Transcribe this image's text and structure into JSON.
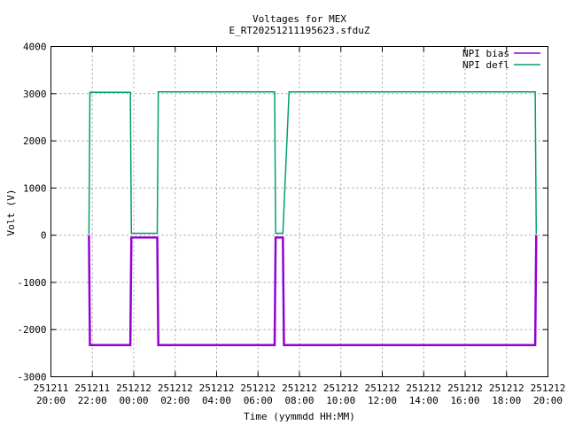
{
  "chart_data": {
    "type": "line",
    "title": "Voltages for MEX",
    "subtitle": "E_RT20251211195623.sfduZ",
    "xlabel": "Time (yymmdd HH:MM)",
    "ylabel": "Volt (V)",
    "xlim": [
      "2025-12-11 20:00",
      "2025-12-12 20:00"
    ],
    "ylim": [
      -3000,
      4000
    ],
    "y_ticks": [
      "4000",
      "3000",
      "2000",
      "1000",
      "0",
      "-1000",
      "-2000",
      "-3000"
    ],
    "x_ticks": [
      {
        "date": "251211",
        "time": "20:00"
      },
      {
        "date": "251211",
        "time": "22:00"
      },
      {
        "date": "251212",
        "time": "00:00"
      },
      {
        "date": "251212",
        "time": "02:00"
      },
      {
        "date": "251212",
        "time": "04:00"
      },
      {
        "date": "251212",
        "time": "06:00"
      },
      {
        "date": "251212",
        "time": "08:00"
      },
      {
        "date": "251212",
        "time": "10:00"
      },
      {
        "date": "251212",
        "time": "12:00"
      },
      {
        "date": "251212",
        "time": "14:00"
      },
      {
        "date": "251212",
        "time": "16:00"
      },
      {
        "date": "251212",
        "time": "18:00"
      },
      {
        "date": "251212",
        "time": "20:00"
      }
    ],
    "grid": true,
    "legend_position": "top-right",
    "series": [
      {
        "name": "NPI bias",
        "color": "#9400d3",
        "points": [
          [
            "2025-12-11 21:50",
            0
          ],
          [
            "2025-12-11 21:53",
            -2330
          ],
          [
            "2025-12-11 23:50",
            -2330
          ],
          [
            "2025-12-11 23:53",
            -50
          ],
          [
            "2025-12-12 01:08",
            -50
          ],
          [
            "2025-12-12 01:11",
            -2330
          ],
          [
            "2025-12-12 06:48",
            -2330
          ],
          [
            "2025-12-12 06:51",
            -50
          ],
          [
            "2025-12-12 07:12",
            -50
          ],
          [
            "2025-12-12 07:15",
            -2330
          ],
          [
            "2025-12-12 19:23",
            -2330
          ],
          [
            "2025-12-12 19:26",
            0
          ]
        ]
      },
      {
        "name": "NPI defl",
        "color": "#009e73",
        "points": [
          [
            "2025-12-11 21:50",
            20
          ],
          [
            "2025-12-11 21:53",
            3030
          ],
          [
            "2025-12-11 23:50",
            3030
          ],
          [
            "2025-12-11 23:53",
            40
          ],
          [
            "2025-12-12 01:08",
            40
          ],
          [
            "2025-12-12 01:11",
            3040
          ],
          [
            "2025-12-12 06:48",
            3040
          ],
          [
            "2025-12-12 06:51",
            40
          ],
          [
            "2025-12-12 07:12",
            40
          ],
          [
            "2025-12-12 07:30",
            3040
          ],
          [
            "2025-12-12 19:23",
            3040
          ],
          [
            "2025-12-12 19:26",
            20
          ]
        ]
      }
    ]
  }
}
